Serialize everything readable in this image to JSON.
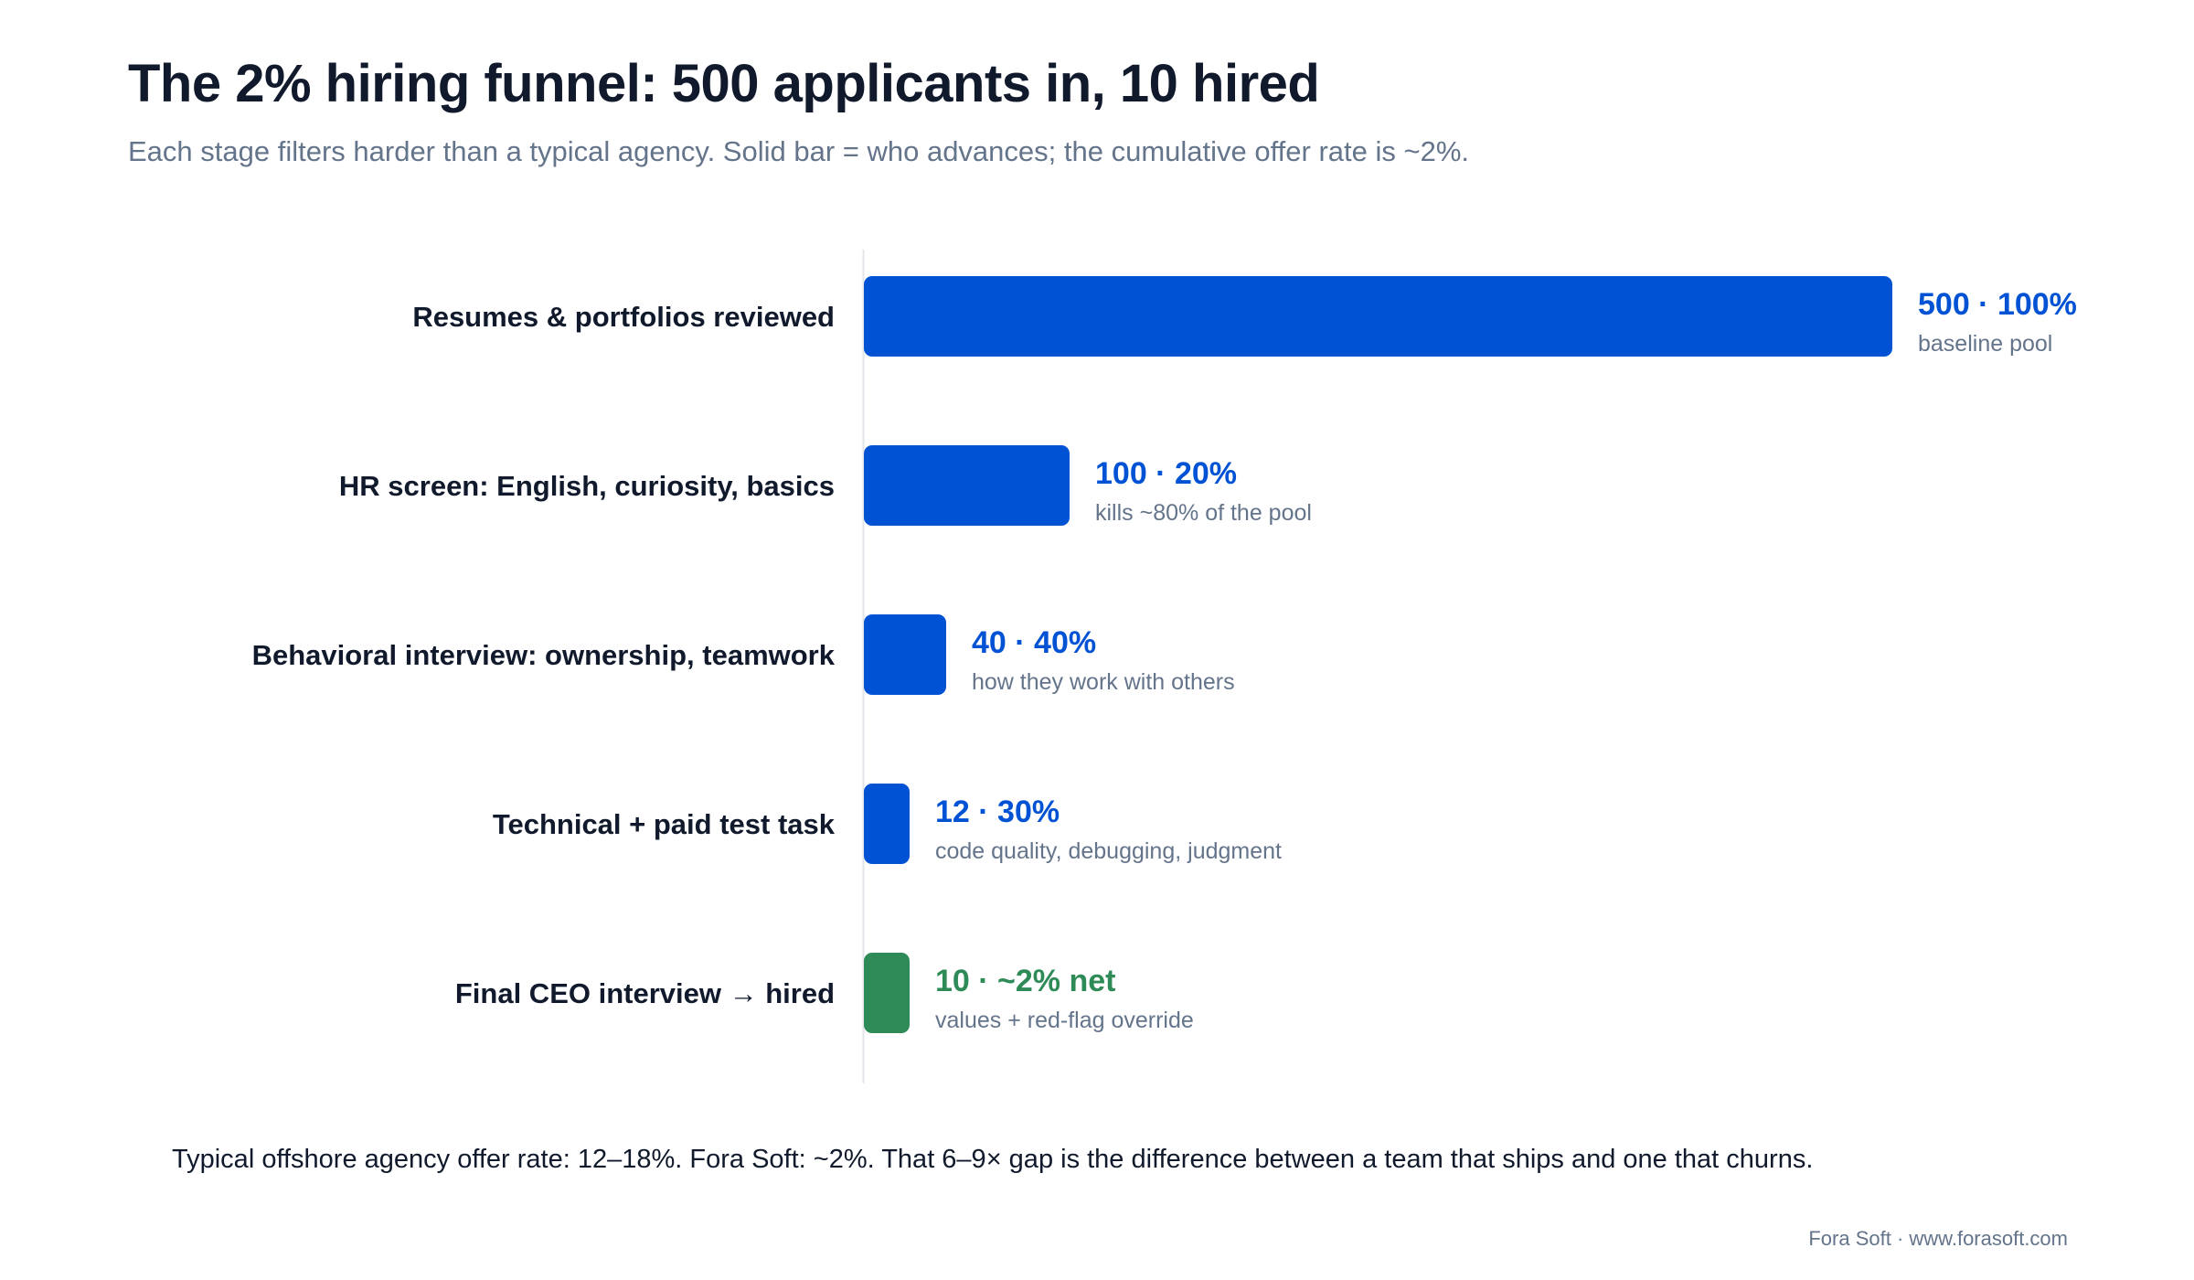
{
  "title": "The 2% hiring funnel: 500 applicants in, 10 hired",
  "subtitle": "Each stage filters harder than a typical agency. Solid bar = who advances; the cumulative offer rate is ~2%.",
  "chart_data": {
    "type": "bar",
    "orientation": "horizontal",
    "categories": [
      "Resumes & portfolios reviewed",
      "HR screen: English, curiosity, basics",
      "Behavioral interview: ownership, teamwork",
      "Technical + paid test task",
      "Final CEO interview → hired"
    ],
    "values": [
      500,
      100,
      40,
      12,
      10
    ],
    "value_labels": [
      "500 · 100%",
      "100 · 20%",
      "40 · 40%",
      "12 · 30%",
      "10 · ~2% net"
    ],
    "notes": [
      "baseline pool",
      "kills ~80% of the pool",
      "how they work with others",
      "code quality, debugging, judgment",
      "values + red-flag override"
    ],
    "colors": [
      "#0052d4",
      "#0052d4",
      "#0052d4",
      "#0052d4",
      "#2e8b57"
    ],
    "xlim": [
      0,
      500
    ],
    "grid": false,
    "legend": "none"
  },
  "footer_note": "Typical offshore agency offer rate: 12–18%. Fora Soft: ~2%. That 6–9× gap is the difference between a team that ships and one that churns.",
  "credit": "Fora Soft · www.forasoft.com"
}
